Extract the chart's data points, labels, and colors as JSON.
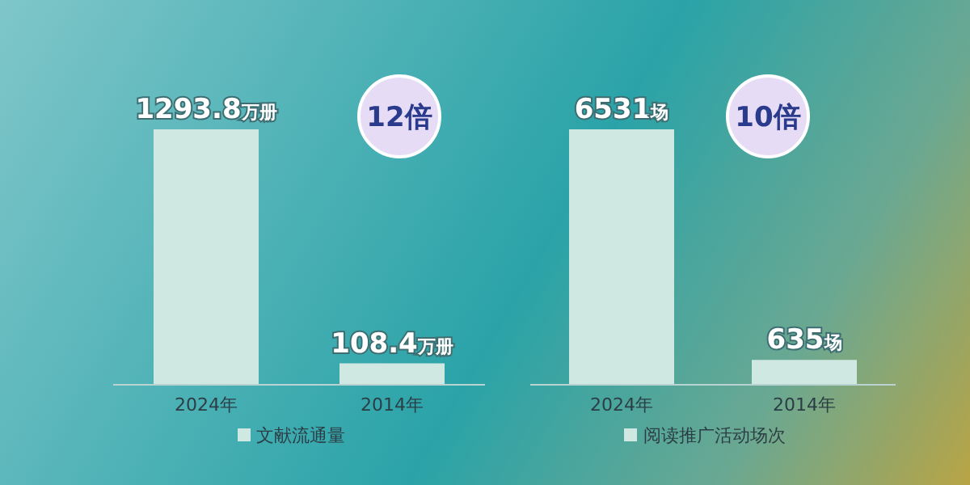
{
  "chart_data": [
    {
      "type": "bar",
      "categories": [
        "2024年",
        "2014年"
      ],
      "series": [
        {
          "name": "文献流通量",
          "color": "#cfe9e2",
          "values": [
            1293.8,
            108.4
          ],
          "value_labels": [
            "1293.8万册",
            "108.4万册"
          ]
        }
      ],
      "annotations": [
        "12倍"
      ],
      "legend": "bottom"
    },
    {
      "type": "bar",
      "categories": [
        "2024年",
        "2014年"
      ],
      "series": [
        {
          "name": "阅读推广活动场次",
          "color": "#cfe9e2",
          "values": [
            6531,
            635
          ],
          "value_labels": [
            "6531场",
            "635场"
          ]
        }
      ],
      "annotations": [
        "10倍"
      ],
      "legend": "bottom"
    }
  ]
}
